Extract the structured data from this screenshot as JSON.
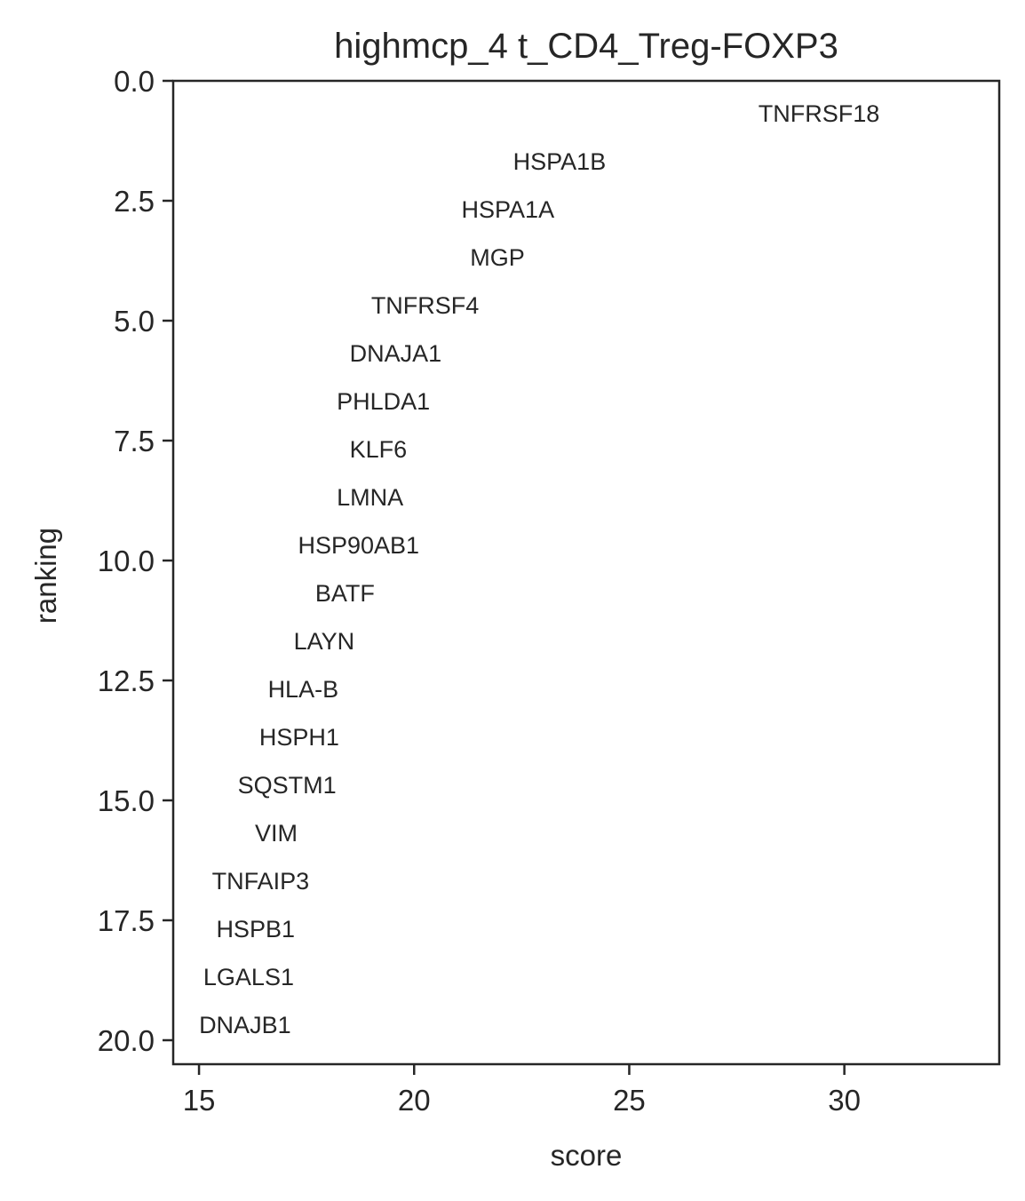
{
  "chart_data": {
    "type": "scatter",
    "title": "highmcp_4 t_CD4_Treg-FOXP3",
    "xlabel": "score",
    "ylabel": "ranking",
    "xlim": [
      14.4,
      33.6
    ],
    "ylim": [
      20.5,
      0
    ],
    "x_ticks": [
      15,
      20,
      25,
      30
    ],
    "x_tick_labels": [
      "15",
      "20",
      "25",
      "30"
    ],
    "y_ticks": [
      0,
      2.5,
      5,
      7.5,
      10,
      12.5,
      15,
      17.5,
      20
    ],
    "y_tick_labels": [
      "0.0",
      "2.5",
      "5.0",
      "7.5",
      "10.0",
      "12.5",
      "15.0",
      "17.5",
      "20.0"
    ],
    "grid": false,
    "points": [
      {
        "label": "TNFRSF18",
        "x": 28.0,
        "y": 0
      },
      {
        "label": "HSPA1B",
        "x": 22.3,
        "y": 1
      },
      {
        "label": "HSPA1A",
        "x": 21.1,
        "y": 2
      },
      {
        "label": "MGP",
        "x": 21.3,
        "y": 3
      },
      {
        "label": "TNFRSF4",
        "x": 19.0,
        "y": 4
      },
      {
        "label": "DNAJA1",
        "x": 18.5,
        "y": 5
      },
      {
        "label": "PHLDA1",
        "x": 18.2,
        "y": 6
      },
      {
        "label": "KLF6",
        "x": 18.5,
        "y": 7
      },
      {
        "label": "LMNA",
        "x": 18.2,
        "y": 8
      },
      {
        "label": "HSP90AB1",
        "x": 17.3,
        "y": 9
      },
      {
        "label": "BATF",
        "x": 17.7,
        "y": 10
      },
      {
        "label": "LAYN",
        "x": 17.2,
        "y": 11
      },
      {
        "label": "HLA-B",
        "x": 16.6,
        "y": 12
      },
      {
        "label": "HSPH1",
        "x": 16.4,
        "y": 13
      },
      {
        "label": "SQSTM1",
        "x": 15.9,
        "y": 14
      },
      {
        "label": "VIM",
        "x": 16.3,
        "y": 15
      },
      {
        "label": "TNFAIP3",
        "x": 15.3,
        "y": 16
      },
      {
        "label": "HSPB1",
        "x": 15.4,
        "y": 17
      },
      {
        "label": "LGALS1",
        "x": 15.1,
        "y": 18
      },
      {
        "label": "DNAJB1",
        "x": 15.0,
        "y": 19
      }
    ]
  }
}
